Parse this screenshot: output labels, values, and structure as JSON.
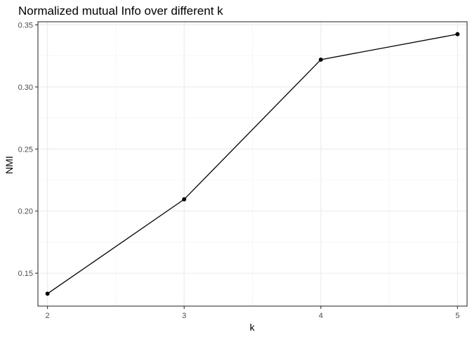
{
  "chart_data": {
    "type": "line",
    "title": "Normalized mutual Info over different k",
    "xlabel": "k",
    "ylabel": "NMI",
    "x": [
      2,
      3,
      4,
      5
    ],
    "series": [
      {
        "values": [
          0.1335,
          0.2095,
          0.322,
          0.3425
        ]
      }
    ],
    "xlim": [
      1.93,
      5.07
    ],
    "ylim": [
      0.1235,
      0.3525
    ],
    "xticks": [
      2,
      3,
      4,
      5
    ],
    "xtick_labels": [
      "2",
      "3",
      "4",
      "5"
    ],
    "yticks": [
      0.15,
      0.2,
      0.25,
      0.3,
      0.35
    ],
    "ytick_labels": [
      "0.15",
      "0.20",
      "0.25",
      "0.30",
      "0.35"
    ],
    "grid": true,
    "line_color": "#000000",
    "point_color": "#000000",
    "panel_border_color": "#333333",
    "grid_color": "#ebebeb"
  }
}
